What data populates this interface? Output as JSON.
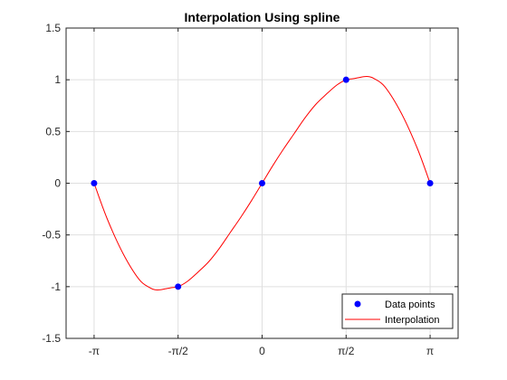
{
  "chart_data": {
    "type": "line",
    "title": "Interpolation Using spline",
    "xlabel": "",
    "ylabel": "",
    "xlim": [
      -3.6652,
      3.6652
    ],
    "ylim": [
      -1.5,
      1.5
    ],
    "grid": true,
    "x_ticks": [
      {
        "value": -3.14159,
        "label": "-π"
      },
      {
        "value": -1.5708,
        "label": "-π/2"
      },
      {
        "value": 0,
        "label": "0"
      },
      {
        "value": 1.5708,
        "label": "π/2"
      },
      {
        "value": 3.14159,
        "label": "π"
      }
    ],
    "y_ticks": [
      {
        "value": 1.5,
        "label": "1.5"
      },
      {
        "value": 1,
        "label": "1"
      },
      {
        "value": 0.5,
        "label": "0.5"
      },
      {
        "value": 0,
        "label": "0"
      },
      {
        "value": -0.5,
        "label": "-0.5"
      },
      {
        "value": -1,
        "label": "-1"
      },
      {
        "value": -1.5,
        "label": "-1.5"
      }
    ],
    "series": [
      {
        "name": "Data points",
        "kind": "markers",
        "color": "#0000ff",
        "x": [
          -3.14159,
          -1.5708,
          0,
          1.5708,
          3.14159
        ],
        "y": [
          0,
          -1,
          0,
          1,
          0
        ]
      },
      {
        "name": "Interpolation",
        "kind": "line",
        "color": "#ff0000",
        "x": [
          -3.14159,
          -2.9,
          -2.6,
          -2.3,
          -2.1,
          -2.0,
          -1.9,
          -1.8,
          -1.7,
          -1.5708,
          -1.4,
          -1.2,
          -1.0,
          -0.8,
          -0.6,
          -0.4,
          -0.2,
          0,
          0.2,
          0.4,
          0.6,
          0.8,
          1.0,
          1.2,
          1.4,
          1.5708,
          1.7,
          1.8,
          1.9,
          2.0,
          2.1,
          2.3,
          2.6,
          2.9,
          3.14159
        ],
        "y": [
          0,
          -0.34,
          -0.68,
          -0.93,
          -1.01,
          -1.03,
          -1.03,
          -1.02,
          -1.01,
          -1.0,
          -0.95,
          -0.86,
          -0.76,
          -0.63,
          -0.48,
          -0.33,
          -0.17,
          0,
          0.17,
          0.33,
          0.48,
          0.63,
          0.76,
          0.86,
          0.95,
          1.0,
          1.01,
          1.02,
          1.03,
          1.03,
          1.01,
          0.93,
          0.68,
          0.34,
          0
        ]
      }
    ],
    "legend": {
      "position": "bottom-right",
      "entries": [
        "Data points",
        "Interpolation"
      ]
    }
  }
}
